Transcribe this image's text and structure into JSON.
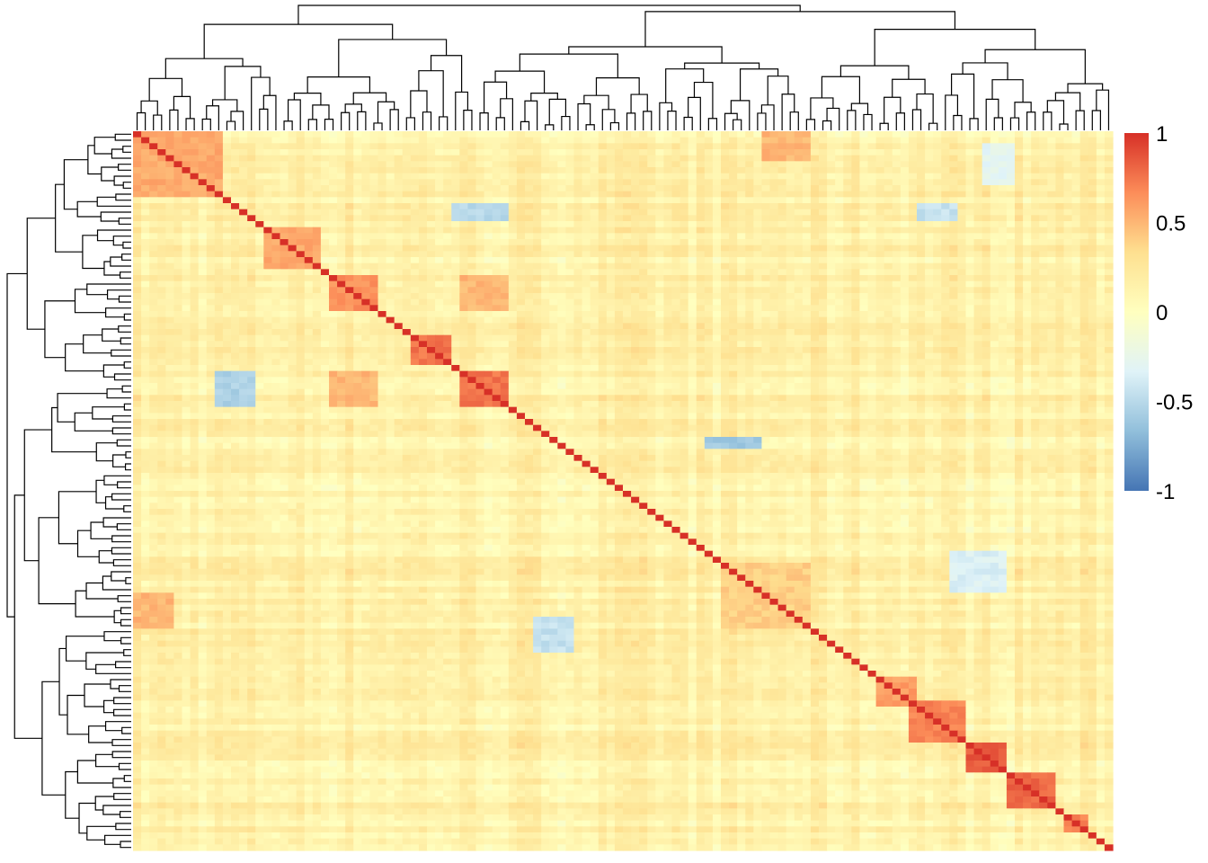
{
  "chart_data": {
    "type": "heatmap",
    "title": "",
    "xlabel": "",
    "ylabel": "",
    "matrix_kind": "clustered correlation matrix",
    "color_scale": {
      "min": -1,
      "max": 1,
      "ticks": [
        1,
        0.5,
        0,
        -0.5,
        -1
      ],
      "tick_labels": [
        "1",
        "0.5",
        "0",
        "-0.5",
        "-1"
      ],
      "colors": [
        "#4575B4",
        "#91BFDB",
        "#E0F3F8",
        "#FFFFBF",
        "#FEE090",
        "#FC8D59",
        "#D73027"
      ]
    },
    "diagonal_value": 1,
    "background_value": 0.15,
    "dendrograms": {
      "rows": "left",
      "columns": "top"
    },
    "blocks": [
      {
        "rows": [
          0.0,
          0.09
        ],
        "cols": [
          0.0,
          0.09
        ],
        "value": 0.55
      },
      {
        "rows": [
          0.14,
          0.19
        ],
        "cols": [
          0.14,
          0.19
        ],
        "value": 0.55
      },
      {
        "rows": [
          0.205,
          0.25
        ],
        "cols": [
          0.205,
          0.25
        ],
        "value": 0.65
      },
      {
        "rows": [
          0.205,
          0.25
        ],
        "cols": [
          0.335,
          0.38
        ],
        "value": 0.5
      },
      {
        "rows": [
          0.335,
          0.38
        ],
        "cols": [
          0.205,
          0.25
        ],
        "value": 0.5
      },
      {
        "rows": [
          0.29,
          0.325
        ],
        "cols": [
          0.29,
          0.325
        ],
        "value": 0.75
      },
      {
        "rows": [
          0.335,
          0.38
        ],
        "cols": [
          0.335,
          0.38
        ],
        "value": 0.75
      },
      {
        "rows": [
          0.605,
          0.645
        ],
        "cols": [
          0.605,
          0.645
        ],
        "value": 0.75
      },
      {
        "rows": [
          0.645,
          0.69
        ],
        "cols": [
          0.645,
          0.69
        ],
        "value": 0.85
      },
      {
        "rows": [
          0.605,
          0.69
        ],
        "cols": [
          0.605,
          0.69
        ],
        "value": 0.4
      },
      {
        "rows": [
          0.76,
          0.8
        ],
        "cols": [
          0.76,
          0.8
        ],
        "value": 0.6
      },
      {
        "rows": [
          0.795,
          0.845
        ],
        "cols": [
          0.795,
          0.845
        ],
        "value": 0.7
      },
      {
        "rows": [
          0.85,
          0.885
        ],
        "cols": [
          0.85,
          0.885
        ],
        "value": 0.85
      },
      {
        "rows": [
          0.895,
          0.935
        ],
        "cols": [
          0.895,
          0.935
        ],
        "value": 0.8
      },
      {
        "rows": [
          0.955,
          0.97
        ],
        "cols": [
          0.955,
          0.97
        ],
        "value": 0.7
      },
      {
        "rows": [
          0.0,
          0.04
        ],
        "cols": [
          0.645,
          0.69
        ],
        "value": 0.5
      },
      {
        "rows": [
          0.645,
          0.69
        ],
        "cols": [
          0.0,
          0.04
        ],
        "value": 0.5
      },
      {
        "rows": [
          0.59,
          0.64
        ],
        "cols": [
          0.835,
          0.885
        ],
        "value": -0.35
      },
      {
        "rows": [
          0.68,
          0.72
        ],
        "cols": [
          0.41,
          0.45
        ],
        "value": -0.45
      },
      {
        "rows": [
          0.34,
          0.38
        ],
        "cols": [
          0.09,
          0.12
        ],
        "value": -0.55
      },
      {
        "rows": [
          0.1,
          0.12
        ],
        "cols": [
          0.33,
          0.38
        ],
        "value": -0.5
      },
      {
        "rows": [
          0.43,
          0.44
        ],
        "cols": [
          0.59,
          0.64
        ],
        "value": -0.6
      },
      {
        "rows": [
          0.1,
          0.12
        ],
        "cols": [
          0.8,
          0.84
        ],
        "value": -0.45
      },
      {
        "rows": [
          0.02,
          0.07
        ],
        "cols": [
          0.87,
          0.9
        ],
        "value": -0.3
      }
    ]
  }
}
